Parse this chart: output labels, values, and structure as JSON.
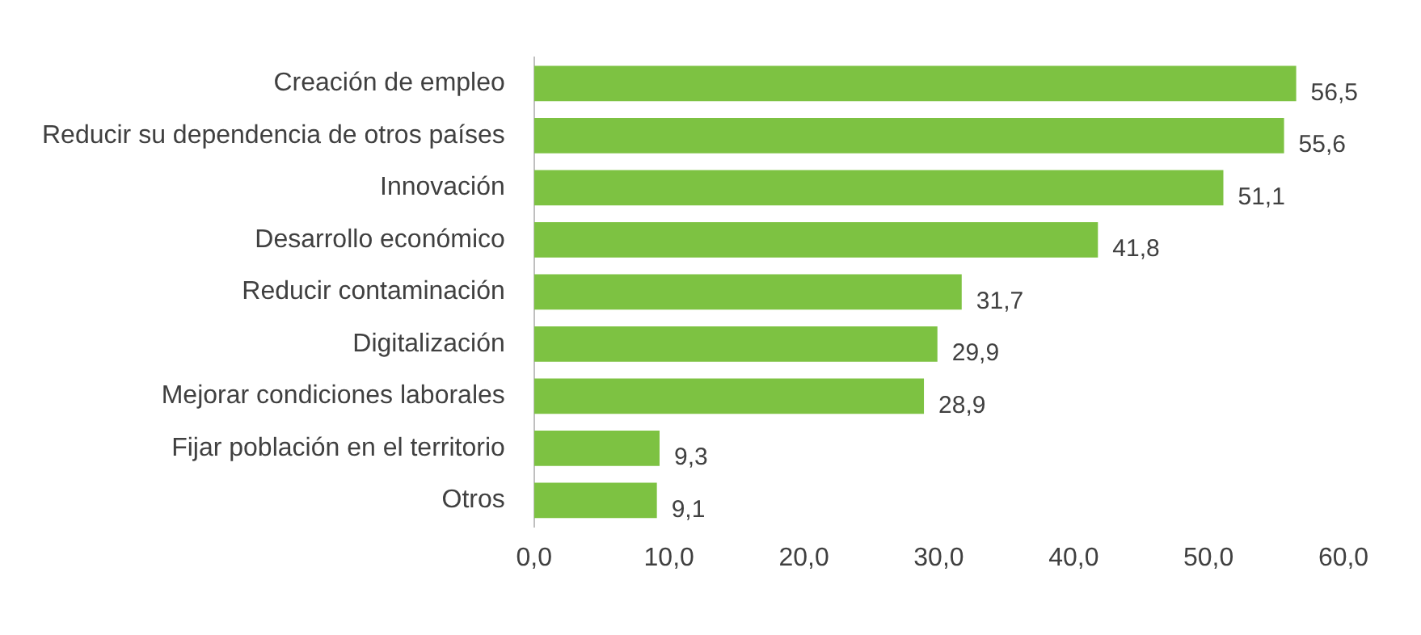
{
  "chart_data": {
    "type": "bar",
    "orientation": "horizontal",
    "categories": [
      "Creación de empleo",
      "Reducir su dependencia de otros países",
      "Innovación",
      "Desarrollo económico",
      "Reducir contaminación",
      "Digitalización",
      "Mejorar condiciones laborales",
      "Fijar población en el territorio",
      "Otros"
    ],
    "values": [
      56.5,
      55.6,
      51.1,
      41.8,
      31.7,
      29.9,
      28.9,
      9.3,
      9.1
    ],
    "value_labels": [
      "56,5",
      "55,6",
      "51,1",
      "41,8",
      "31,7",
      "29,9",
      "28,9",
      "9,3",
      "9,1"
    ],
    "color": "#7dc242",
    "xlim": [
      0,
      60
    ],
    "xticks": [
      {
        "value": 0,
        "label": "0,0"
      },
      {
        "value": 10,
        "label": "10,0"
      },
      {
        "value": 20,
        "label": "20,0"
      },
      {
        "value": 30,
        "label": "30,0"
      },
      {
        "value": 40,
        "label": "40,0"
      },
      {
        "value": 50,
        "label": "50,0"
      },
      {
        "value": 60,
        "label": "60,0"
      }
    ]
  }
}
